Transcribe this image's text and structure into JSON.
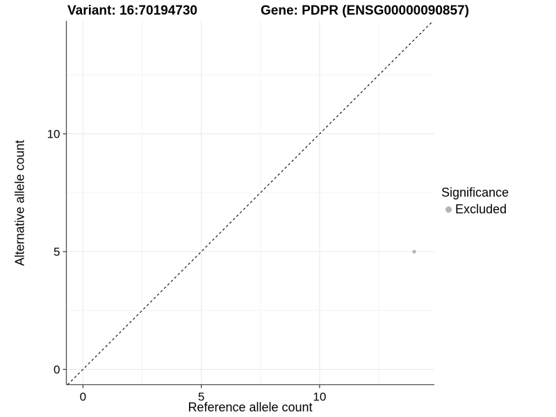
{
  "chart_data": {
    "type": "scatter",
    "title_variant": "Variant: 16:70194730",
    "title_gene": "Gene: PDPR (ENSG00000090857)",
    "xlabel": "Reference allele count",
    "ylabel": "Alternative allele count",
    "xlim": [
      -0.7,
      14.85
    ],
    "ylim": [
      -0.65,
      14.8
    ],
    "x_ticks": [
      0,
      5,
      10
    ],
    "y_ticks": [
      0,
      5,
      10
    ],
    "x_minor_ticks": [
      2.5,
      7.5,
      12.5
    ],
    "y_minor_ticks": [
      2.5,
      7.5,
      12.5
    ],
    "grid": "major+minor",
    "legend_position": "right",
    "identity_line": {
      "type": "y=x",
      "style": "dashed",
      "color": "#000000",
      "from": [
        -0.65,
        -0.65
      ],
      "to": [
        14.8,
        14.8
      ]
    },
    "series": [
      {
        "name": "Excluded",
        "color": "#b3b3b3",
        "point_radius": 2.6,
        "points": [
          {
            "x": 14,
            "y": 5
          }
        ]
      }
    ],
    "legend": {
      "title": "Significance",
      "entries": [
        {
          "label": "Excluded",
          "color": "#b3b3b3"
        }
      ]
    }
  },
  "colors": {
    "background": "#ffffff",
    "axis_line": "#4d4d4d",
    "tick_mark": "#333333",
    "tick_label": "#000000",
    "grid_major": "#e8e8e8",
    "grid_minor": "#f4f4f4"
  }
}
